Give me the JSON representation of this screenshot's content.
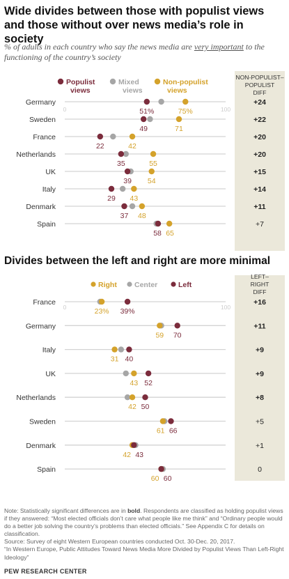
{
  "title": "Wide divides between those with populist views and those without over news media’s role in society",
  "subtitle": {
    "pre": "% of adults in each country who say the news media are ",
    "underlined": "very important",
    "post": " to the functioning of the country’s society"
  },
  "colors": {
    "populist": "#7b2c3c",
    "mixed": "#a6a6a6",
    "nonpopulist": "#d4a22b",
    "right": "#d4a22b",
    "center": "#a6a6a6",
    "left": "#7b2c3c",
    "diff_bg": "#ebe8da",
    "track": "#d3d3d3"
  },
  "chart_data": [
    {
      "type": "dot",
      "axis": {
        "min": 0,
        "max": 100,
        "min_label": "0",
        "max_label": "100"
      },
      "legend": [
        {
          "key": "populist",
          "label": "Populist views"
        },
        {
          "key": "mixed",
          "label": "Mixed views"
        },
        {
          "key": "nonpopulist",
          "label": "Non-populist views"
        }
      ],
      "diff_header": "NON-POPULIST– POPULIST DIFF",
      "value_suffix_first_row": "%",
      "rows": [
        {
          "country": "Germany",
          "populist": 51,
          "mixed": 60,
          "nonpopulist": 75,
          "diff": "+24",
          "bold": true
        },
        {
          "country": "Sweden",
          "populist": 49,
          "mixed": 53,
          "nonpopulist": 71,
          "diff": "+22",
          "bold": true
        },
        {
          "country": "France",
          "populist": 22,
          "mixed": 30,
          "nonpopulist": 42,
          "diff": "+20",
          "bold": true
        },
        {
          "country": "Netherlands",
          "populist": 35,
          "mixed": 38,
          "nonpopulist": 55,
          "diff": "+20",
          "bold": true
        },
        {
          "country": "UK",
          "populist": 39,
          "mixed": 41,
          "nonpopulist": 54,
          "diff": "+15",
          "bold": true
        },
        {
          "country": "Italy",
          "populist": 29,
          "mixed": 36,
          "nonpopulist": 43,
          "diff": "+14",
          "bold": true
        },
        {
          "country": "Denmark",
          "populist": 37,
          "mixed": 42,
          "nonpopulist": 48,
          "diff": "+11",
          "bold": true
        },
        {
          "country": "Spain",
          "populist": 58,
          "mixed": 57,
          "nonpopulist": 65,
          "diff": "+7",
          "bold": false
        }
      ]
    },
    {
      "type": "dot",
      "title": "Divides between the left and right are more minimal",
      "axis": {
        "min": 0,
        "max": 100,
        "min_label": "0",
        "max_label": "100"
      },
      "legend": [
        {
          "key": "right",
          "label": "Right"
        },
        {
          "key": "center",
          "label": "Center"
        },
        {
          "key": "left",
          "label": "Left"
        }
      ],
      "diff_header": "LEFT– RIGHT DIFF",
      "value_suffix_first_row": "%",
      "rows": [
        {
          "country": "France",
          "right": 23,
          "center": 22,
          "left": 39,
          "diff": "+16",
          "bold": true
        },
        {
          "country": "Germany",
          "right": 59,
          "center": 60,
          "left": 70,
          "diff": "+11",
          "bold": true
        },
        {
          "country": "Italy",
          "right": 31,
          "center": 35,
          "left": 40,
          "diff": "+9",
          "bold": true
        },
        {
          "country": "UK",
          "right": 43,
          "center": 38,
          "left": 52,
          "diff": "+9",
          "bold": true
        },
        {
          "country": "Netherlands",
          "right": 42,
          "center": 39,
          "left": 50,
          "diff": "+8",
          "bold": true
        },
        {
          "country": "Sweden",
          "right": 61,
          "center": 62,
          "left": 66,
          "diff": "+5",
          "bold": false
        },
        {
          "country": "Denmark",
          "right": 42,
          "center": 44,
          "left": 43,
          "diff": "+1",
          "bold": false
        },
        {
          "country": "Spain",
          "right": 60,
          "center": 61,
          "left": 60,
          "diff": "0",
          "bold": false
        }
      ]
    }
  ],
  "notes": {
    "note_pre": "Note: Statistically significant differences are in ",
    "note_bold": "bold",
    "note_post": ". Respondents are classified as holding populist views if they answered: “Most elected officials don’t care what people like me think” and “Ordinary people would do a better job solving the country’s problems than elected officials.” See Appendix C for details on classification.",
    "source": "Source: Survey of eight Western European countries conducted Oct. 30-Dec. 20, 2017.",
    "report": "“In Western Europe, Public Attitudes Toward News Media More Divided by Populist Views Than Left-Right Ideology”"
  },
  "brand": "PEW RESEARCH CENTER"
}
